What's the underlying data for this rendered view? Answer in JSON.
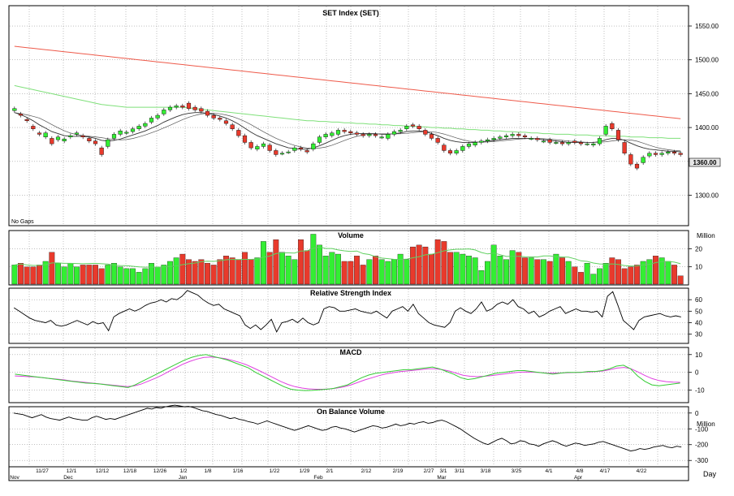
{
  "note_no_gaps": "No Gaps",
  "unit_label": "Day",
  "colors": {
    "up": "#33ee33",
    "down": "#e83a2c",
    "sma_long": "#ee5a4a",
    "sma_mid": "#7fe07a",
    "sma_short": "#333333",
    "line": "#000000",
    "signal": "#e040e0",
    "macd": "#33cc33",
    "vol_ma": "#60d060",
    "grid": "#9a9a9a",
    "last_label_bg": "#e6e6e6"
  },
  "x_axis": {
    "ticks": [
      "11/27",
      "12/1",
      "12/12",
      "12/18",
      "12/26",
      "1/2",
      "1/8",
      "1/16",
      "1/22",
      "1/29",
      "2/1",
      "2/12",
      "2/19",
      "2/27",
      "3/1",
      "3/11",
      "3/18",
      "3/25",
      "4/1",
      "4/8",
      "4/17",
      "4/22"
    ],
    "months": [
      "Nov",
      "Dec",
      "Jan",
      "Feb",
      "Mar",
      "Apr"
    ]
  },
  "chart_data": [
    {
      "type": "candlestick",
      "title": "SET Index (SET)",
      "ylim": [
        1255,
        1580
      ],
      "yticks": [
        1300,
        1350,
        1400,
        1450,
        1500,
        1550
      ],
      "ytick_labels": [
        "1300.00",
        "1350.00",
        "1400.00",
        "1450.00",
        "1500.00",
        "1550.00"
      ],
      "last_value_label": "1360.00",
      "close": [
        1428,
        1418,
        1410,
        1398,
        1390,
        1392,
        1376,
        1386,
        1383,
        1388,
        1392,
        1386,
        1380,
        1376,
        1360,
        1382,
        1390,
        1395,
        1393,
        1398,
        1402,
        1406,
        1414,
        1418,
        1426,
        1430,
        1432,
        1430,
        1428,
        1426,
        1424,
        1418,
        1414,
        1412,
        1406,
        1398,
        1388,
        1378,
        1370,
        1372,
        1376,
        1366,
        1360,
        1362,
        1364,
        1370,
        1368,
        1364,
        1376,
        1386,
        1390,
        1392,
        1396,
        1394,
        1392,
        1390,
        1388,
        1390,
        1388,
        1386,
        1390,
        1394,
        1396,
        1402,
        1402,
        1398,
        1390,
        1384,
        1378,
        1366,
        1362,
        1366,
        1372,
        1376,
        1378,
        1380,
        1382,
        1384,
        1386,
        1388,
        1390,
        1388,
        1386,
        1384,
        1382,
        1380,
        1378,
        1378,
        1376,
        1378,
        1378,
        1376,
        1376,
        1376,
        1384,
        1402,
        1398,
        1382,
        1362,
        1346,
        1340,
        1356,
        1362,
        1360,
        1362,
        1364,
        1362,
        1360
      ],
      "open": [
        1425,
        1420,
        1412,
        1402,
        1392,
        1386,
        1384,
        1382,
        1380,
        1386,
        1390,
        1388,
        1384,
        1380,
        1370,
        1372,
        1384,
        1390,
        1392,
        1394,
        1398,
        1402,
        1408,
        1414,
        1420,
        1426,
        1430,
        1432,
        1436,
        1430,
        1428,
        1424,
        1418,
        1414,
        1410,
        1404,
        1396,
        1388,
        1378,
        1368,
        1372,
        1374,
        1366,
        1362,
        1364,
        1366,
        1370,
        1366,
        1368,
        1378,
        1386,
        1388,
        1390,
        1396,
        1394,
        1392,
        1390,
        1388,
        1390,
        1386,
        1384,
        1390,
        1394,
        1398,
        1404,
        1402,
        1396,
        1390,
        1384,
        1374,
        1366,
        1362,
        1366,
        1372,
        1374,
        1378,
        1380,
        1382,
        1384,
        1386,
        1388,
        1390,
        1388,
        1384,
        1384,
        1380,
        1382,
        1378,
        1378,
        1376,
        1380,
        1378,
        1376,
        1374,
        1376,
        1390,
        1406,
        1396,
        1378,
        1360,
        1346,
        1348,
        1358,
        1362,
        1360,
        1362,
        1364,
        1362
      ],
      "sma_short": [
        1422,
        1419,
        1415,
        1410,
        1404,
        1399,
        1394,
        1391,
        1388,
        1387,
        1387,
        1387,
        1386,
        1384,
        1381,
        1380,
        1381,
        1383,
        1386,
        1389,
        1392,
        1395,
        1399,
        1403,
        1408,
        1412,
        1416,
        1419,
        1421,
        1422,
        1422,
        1421,
        1419,
        1417,
        1414,
        1410,
        1405,
        1399,
        1393,
        1388,
        1384,
        1380,
        1376,
        1373,
        1370,
        1369,
        1368,
        1368,
        1370,
        1373,
        1377,
        1381,
        1385,
        1388,
        1390,
        1391,
        1391,
        1391,
        1391,
        1390,
        1390,
        1391,
        1392,
        1394,
        1395,
        1395,
        1394,
        1391,
        1388,
        1384,
        1381,
        1379,
        1378,
        1378,
        1378,
        1379,
        1380,
        1381,
        1382,
        1383,
        1384,
        1384,
        1384,
        1384,
        1383,
        1382,
        1381,
        1380,
        1379,
        1378,
        1378,
        1378,
        1378,
        1378,
        1379,
        1382,
        1384,
        1384,
        1381,
        1377,
        1373,
        1370,
        1368,
        1367,
        1366,
        1365,
        1365,
        1364
      ],
      "sma_mid": [
        1462,
        1460,
        1458,
        1456,
        1454,
        1452,
        1450,
        1448,
        1446,
        1444,
        1442,
        1440,
        1438,
        1436,
        1434,
        1433,
        1432,
        1431,
        1430,
        1430,
        1430,
        1430,
        1430,
        1430,
        1430,
        1430,
        1430,
        1430,
        1429,
        1428,
        1427,
        1426,
        1425,
        1424,
        1423,
        1422,
        1421,
        1420,
        1419,
        1418,
        1417,
        1416,
        1415,
        1414,
        1413,
        1412,
        1411,
        1410,
        1410,
        1409,
        1409,
        1408,
        1408,
        1407,
        1407,
        1406,
        1406,
        1405,
        1405,
        1404,
        1404,
        1403,
        1403,
        1402,
        1402,
        1401,
        1401,
        1400,
        1400,
        1399,
        1399,
        1398,
        1398,
        1397,
        1397,
        1396,
        1396,
        1395,
        1395,
        1394,
        1394,
        1393,
        1393,
        1392,
        1392,
        1391,
        1391,
        1390,
        1390,
        1390,
        1389,
        1389,
        1389,
        1388,
        1388,
        1388,
        1387,
        1387,
        1387,
        1386,
        1386,
        1386,
        1385,
        1385,
        1385,
        1384,
        1384,
        1384
      ],
      "sma_long": [
        1520,
        1519,
        1518,
        1517,
        1516,
        1515,
        1514,
        1513,
        1512,
        1511,
        1510,
        1509,
        1508,
        1507,
        1506,
        1505,
        1504,
        1503,
        1502,
        1501,
        1500,
        1499,
        1498,
        1497,
        1496,
        1495,
        1494,
        1493,
        1492,
        1491,
        1490,
        1489,
        1488,
        1487,
        1486,
        1485,
        1484,
        1483,
        1482,
        1481,
        1480,
        1479,
        1478,
        1477,
        1476,
        1475,
        1474,
        1473,
        1472,
        1471,
        1470,
        1469,
        1468,
        1467,
        1466,
        1465,
        1464,
        1463,
        1462,
        1461,
        1460,
        1459,
        1458,
        1457,
        1456,
        1455,
        1454,
        1453,
        1452,
        1451,
        1450,
        1449,
        1448,
        1447,
        1446,
        1445,
        1444,
        1443,
        1442,
        1441,
        1440,
        1439,
        1438,
        1437,
        1436,
        1435,
        1434,
        1433,
        1432,
        1431,
        1430,
        1429,
        1428,
        1427,
        1426,
        1425,
        1424,
        1423,
        1422,
        1421,
        1420,
        1419,
        1418,
        1417,
        1416,
        1415,
        1414,
        1413
      ]
    },
    {
      "type": "bar",
      "title": "Volume",
      "unit_label": "Million",
      "ylim": [
        0,
        30
      ],
      "yticks": [
        10,
        20
      ],
      "values": [
        11,
        12,
        10,
        10,
        11,
        13,
        18,
        12,
        10,
        12,
        10,
        11,
        11,
        11,
        9,
        11,
        12,
        10,
        9,
        9,
        7,
        9,
        12,
        10,
        11,
        13,
        15,
        17,
        14,
        13,
        14,
        12,
        11,
        14,
        16,
        15,
        14,
        18,
        14,
        15,
        24,
        18,
        25,
        18,
        16,
        14,
        25,
        19,
        28,
        22,
        16,
        18,
        17,
        13,
        13,
        16,
        11,
        14,
        16,
        14,
        13,
        14,
        17,
        14,
        21,
        22,
        21,
        17,
        25,
        24,
        18,
        18,
        17,
        16,
        15,
        8,
        13,
        22,
        16,
        14,
        19,
        18,
        15,
        15,
        14,
        14,
        13,
        17,
        15,
        13,
        10,
        7,
        12,
        6,
        9,
        12,
        15,
        14,
        9,
        10,
        11,
        13,
        14,
        16,
        15,
        13,
        11,
        5
      ]
    },
    {
      "type": "line",
      "title": "Relative Strength Index",
      "ylim": [
        22,
        70
      ],
      "yticks": [
        30,
        40,
        50,
        60
      ],
      "values": [
        53,
        50,
        47,
        44,
        42,
        41,
        40,
        42,
        38,
        37,
        38,
        40,
        42,
        40,
        38,
        41,
        39,
        40,
        33,
        45,
        48,
        50,
        52,
        50,
        52,
        55,
        57,
        58,
        60,
        58,
        61,
        60,
        63,
        68,
        66,
        64,
        60,
        57,
        55,
        56,
        52,
        50,
        48,
        46,
        38,
        35,
        38,
        34,
        38,
        43,
        32,
        40,
        41,
        43,
        40,
        44,
        40,
        38,
        40,
        52,
        54,
        53,
        50,
        50,
        51,
        52,
        50,
        49,
        48,
        50,
        47,
        44,
        50,
        52,
        54,
        50,
        56,
        48,
        44,
        40,
        38,
        37,
        36,
        40,
        50,
        53,
        50,
        48,
        52,
        58,
        50,
        52,
        56,
        58,
        56,
        60,
        54,
        52,
        48,
        50,
        45,
        47,
        50,
        52,
        54,
        48,
        50,
        52,
        50,
        50,
        49,
        50,
        45,
        63,
        67,
        55,
        42,
        38,
        34,
        42,
        45,
        46,
        47,
        48,
        46,
        45,
        46,
        45
      ]
    },
    {
      "type": "line",
      "title": "MACD",
      "ylim": [
        -17,
        14
      ],
      "yticks": [
        -10,
        0,
        10
      ],
      "series": [
        {
          "values": [
            -1,
            -1.5,
            -2,
            -2.5,
            -3,
            -3.5,
            -4,
            -4.5,
            -5,
            -5.5,
            -6,
            -6.2,
            -6.5,
            -7,
            -7.5,
            -8,
            -8.5,
            -7,
            -5,
            -3,
            -1,
            1,
            3,
            5,
            7,
            8.5,
            9.5,
            10,
            9,
            8,
            7,
            5.5,
            4,
            2.5,
            0,
            -2,
            -4,
            -6,
            -8,
            -9.5,
            -10,
            -10.2,
            -10.1,
            -9.8,
            -9.5,
            -9,
            -8,
            -7,
            -5,
            -3,
            -1.5,
            -0.5,
            0,
            0.5,
            1,
            1.5,
            1.5,
            2,
            2.5,
            3,
            2,
            0.5,
            -1,
            -3,
            -4,
            -3.5,
            -2.5,
            -1.5,
            -0.5,
            0,
            0.5,
            1,
            1,
            0.5,
            0,
            -0.5,
            -1,
            -0.5,
            0,
            0,
            0,
            0.5,
            0.5,
            1,
            2,
            3.5,
            4,
            2,
            -2,
            -5,
            -7,
            -7.5,
            -7,
            -6.5,
            -6
          ]
        },
        {
          "values": [
            -2,
            -2.2,
            -2.4,
            -2.6,
            -3,
            -3.4,
            -3.8,
            -4.2,
            -4.8,
            -5.2,
            -5.6,
            -6,
            -6.4,
            -6.8,
            -7.2,
            -7.6,
            -8,
            -7.6,
            -6.6,
            -5,
            -3.4,
            -1.6,
            0.6,
            2.6,
            4.6,
            6.2,
            7.5,
            8.4,
            8.6,
            8.3,
            7.7,
            6.8,
            5.7,
            4.4,
            2.6,
            0.8,
            -1.2,
            -3.2,
            -5.2,
            -6.8,
            -8,
            -8.8,
            -9.3,
            -9.5,
            -9.5,
            -9.3,
            -8.8,
            -8.1,
            -7,
            -5.6,
            -4.2,
            -3,
            -1.8,
            -0.8,
            -0.2,
            0.4,
            0.8,
            1.2,
            1.6,
            2,
            2,
            1.6,
            0.8,
            -0.4,
            -1.6,
            -2.2,
            -2.4,
            -2.2,
            -1.8,
            -1.3,
            -0.8,
            -0.3,
            0.1,
            0.2,
            0.1,
            -0.1,
            -0.4,
            -0.4,
            -0.3,
            -0.2,
            -0.1,
            0.1,
            0.2,
            0.4,
            0.8,
            1.6,
            2.4,
            2.8,
            2,
            0.2,
            -1.8,
            -3.5,
            -4.6,
            -5.2,
            -5.5,
            -5.6
          ]
        }
      ]
    },
    {
      "type": "line",
      "title": "On Balance Volume",
      "unit_label": "Million",
      "ylim": [
        -340,
        40
      ],
      "yticks": [
        -300,
        -200,
        -100,
        0
      ],
      "ytick_labels": [
        "-300",
        "-200",
        "-100",
        "0"
      ],
      "values": [
        0,
        -5,
        -10,
        -20,
        -30,
        -20,
        -10,
        -25,
        -35,
        -40,
        -45,
        -35,
        -25,
        -35,
        -40,
        -45,
        -45,
        -30,
        -20,
        -30,
        -40,
        -35,
        -40,
        -30,
        -20,
        -10,
        0,
        10,
        20,
        30,
        25,
        35,
        30,
        40,
        45,
        50,
        45,
        40,
        42,
        35,
        25,
        15,
        10,
        0,
        -10,
        -15,
        -25,
        -35,
        -30,
        -40,
        -45,
        -55,
        -60,
        -70,
        -60,
        -50,
        -60,
        -70,
        -80,
        -90,
        -100,
        -110,
        -100,
        -90,
        -80,
        -90,
        -100,
        -110,
        -105,
        -90,
        -85,
        -95,
        -100,
        -110,
        -120,
        -110,
        -100,
        -90,
        -80,
        -85,
        -95,
        -90,
        -80,
        -70,
        -80,
        -75,
        -65,
        -70,
        -60,
        -55,
        -65,
        -60,
        -50,
        -45,
        -55,
        -70,
        -85,
        -100,
        -120,
        -140,
        -160,
        -175,
        -190,
        -200,
        -185,
        -170,
        -160,
        -175,
        -195,
        -190,
        -175,
        -180,
        -195,
        -200,
        -210,
        -195,
        -185,
        -175,
        -185,
        -200,
        -210,
        -200,
        -190,
        -195,
        -205,
        -200,
        -195,
        -185,
        -180,
        -190,
        -200,
        -210,
        -220,
        -230,
        -240,
        -235,
        -225,
        -230,
        -225,
        -215,
        -210,
        -205,
        -215,
        -220,
        -210,
        -215
      ]
    }
  ]
}
